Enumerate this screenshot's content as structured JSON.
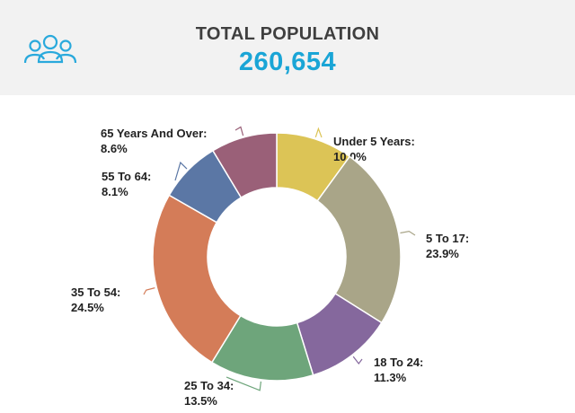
{
  "header": {
    "title": "TOTAL POPULATION",
    "total": "260,654",
    "icon": "people-group-icon",
    "accent": "#1aa5d6"
  },
  "chart_data": {
    "type": "pie",
    "variant": "donut",
    "title": "TOTAL POPULATION",
    "slices": [
      {
        "name": "Under 5 Years:",
        "value": 10.0,
        "label": "10.0%",
        "color": "#dcc456"
      },
      {
        "name": "5 To 17:",
        "value": 23.9,
        "label": "23.9%",
        "color": "#a9a588"
      },
      {
        "name": "18 To 24:",
        "value": 11.3,
        "label": "11.3%",
        "color": "#85689d"
      },
      {
        "name": "25 To 34:",
        "value": 13.5,
        "label": "13.5%",
        "color": "#6ea57b"
      },
      {
        "name": "35 To 54:",
        "value": 24.5,
        "label": "24.5%",
        "color": "#d47c58"
      },
      {
        "name": "55 To 64:",
        "value": 8.1,
        "label": "8.1%",
        "color": "#5b77a5"
      },
      {
        "name": "65 Years And Over:",
        "value": 8.6,
        "label": "8.6%",
        "color": "#9a6078"
      }
    ]
  }
}
